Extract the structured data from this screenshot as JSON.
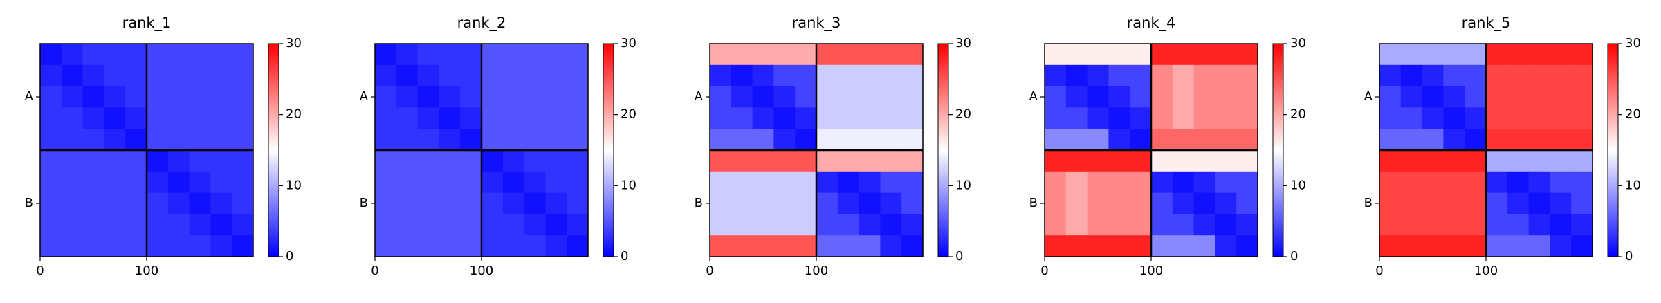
{
  "chart_data": [
    {
      "type": "heatmap",
      "title": "rank_1",
      "xlim": [
        0,
        200
      ],
      "ylim": [
        200,
        0
      ],
      "xticks": [
        0,
        100
      ],
      "yticks": [
        {
          "value": 50,
          "label": "A"
        },
        {
          "value": 150,
          "label": "B"
        }
      ],
      "chain_breaks": [
        100
      ],
      "zlim": [
        0,
        30
      ],
      "zticks": [
        0,
        10,
        20,
        30
      ],
      "colormap": [
        "#0000ff",
        "#ffffff",
        "#ff0000"
      ],
      "z": [
        [
          1,
          2,
          3,
          3,
          3,
          4,
          4,
          4,
          4,
          4
        ],
        [
          2,
          1,
          2,
          3,
          3,
          4,
          4,
          4,
          4,
          4
        ],
        [
          3,
          2,
          1,
          2,
          3,
          4,
          4,
          4,
          4,
          4
        ],
        [
          3,
          3,
          2,
          1,
          2,
          4,
          4,
          4,
          4,
          4
        ],
        [
          3,
          3,
          3,
          2,
          1,
          4,
          4,
          4,
          4,
          4
        ],
        [
          4,
          4,
          4,
          4,
          4,
          1,
          2,
          3,
          3,
          3
        ],
        [
          4,
          4,
          4,
          4,
          4,
          2,
          1,
          2,
          3,
          3
        ],
        [
          4,
          4,
          4,
          4,
          4,
          3,
          2,
          1,
          2,
          3
        ],
        [
          4,
          4,
          4,
          4,
          4,
          3,
          3,
          2,
          1,
          2
        ],
        [
          4,
          4,
          4,
          4,
          4,
          3,
          3,
          3,
          2,
          1
        ]
      ]
    },
    {
      "type": "heatmap",
      "title": "rank_2",
      "xlim": [
        0,
        200
      ],
      "ylim": [
        200,
        0
      ],
      "xticks": [
        0,
        100
      ],
      "yticks": [
        {
          "value": 50,
          "label": "A"
        },
        {
          "value": 150,
          "label": "B"
        }
      ],
      "chain_breaks": [
        100
      ],
      "zlim": [
        0,
        30
      ],
      "zticks": [
        0,
        10,
        20,
        30
      ],
      "colormap": [
        "#0000ff",
        "#ffffff",
        "#ff0000"
      ],
      "z": [
        [
          1,
          2,
          3,
          3,
          3,
          5,
          5,
          5,
          5,
          5
        ],
        [
          2,
          1,
          2,
          3,
          3,
          5,
          5,
          5,
          5,
          5
        ],
        [
          3,
          2,
          1,
          2,
          3,
          5,
          5,
          5,
          5,
          5
        ],
        [
          3,
          3,
          2,
          1,
          2,
          5,
          5,
          5,
          5,
          5
        ],
        [
          3,
          3,
          3,
          2,
          1,
          5,
          5,
          5,
          5,
          5
        ],
        [
          5,
          5,
          5,
          5,
          5,
          1,
          2,
          3,
          3,
          3
        ],
        [
          5,
          5,
          5,
          5,
          5,
          2,
          1,
          2,
          3,
          3
        ],
        [
          5,
          5,
          5,
          5,
          5,
          3,
          2,
          1,
          2,
          3
        ],
        [
          5,
          5,
          5,
          5,
          5,
          3,
          3,
          2,
          1,
          2
        ],
        [
          5,
          5,
          5,
          5,
          5,
          3,
          3,
          3,
          2,
          1
        ]
      ]
    },
    {
      "type": "heatmap",
      "title": "rank_3",
      "xlim": [
        0,
        200
      ],
      "ylim": [
        200,
        0
      ],
      "xticks": [
        0,
        100
      ],
      "yticks": [
        {
          "value": 50,
          "label": "A"
        },
        {
          "value": 150,
          "label": "B"
        }
      ],
      "chain_breaks": [
        100
      ],
      "zlim": [
        0,
        30
      ],
      "zticks": [
        0,
        10,
        20,
        30
      ],
      "colormap": [
        "#0000ff",
        "#ffffff",
        "#ff0000"
      ],
      "z": [
        [
          20,
          20,
          20,
          20,
          20,
          25,
          25,
          25,
          25,
          25
        ],
        [
          2,
          1,
          2,
          4,
          4,
          12,
          12,
          12,
          12,
          12
        ],
        [
          4,
          2,
          1,
          2,
          4,
          12,
          12,
          12,
          12,
          12
        ],
        [
          4,
          4,
          2,
          1,
          2,
          12,
          12,
          12,
          12,
          12
        ],
        [
          6,
          6,
          6,
          2,
          1,
          14,
          14,
          14,
          14,
          14
        ],
        [
          25,
          25,
          25,
          25,
          25,
          20,
          20,
          20,
          20,
          20
        ],
        [
          12,
          12,
          12,
          12,
          12,
          2,
          1,
          2,
          4,
          4
        ],
        [
          12,
          12,
          12,
          12,
          12,
          4,
          2,
          1,
          2,
          4
        ],
        [
          12,
          12,
          12,
          12,
          12,
          4,
          4,
          2,
          1,
          2
        ],
        [
          25,
          25,
          25,
          25,
          25,
          6,
          6,
          6,
          2,
          1
        ]
      ]
    },
    {
      "type": "heatmap",
      "title": "rank_4",
      "xlim": [
        0,
        200
      ],
      "ylim": [
        200,
        0
      ],
      "xticks": [
        0,
        100
      ],
      "yticks": [
        {
          "value": 50,
          "label": "A"
        },
        {
          "value": 150,
          "label": "B"
        }
      ],
      "chain_breaks": [
        100
      ],
      "zlim": [
        0,
        30
      ],
      "zticks": [
        0,
        10,
        20,
        30
      ],
      "colormap": [
        "#0000ff",
        "#ffffff",
        "#ff0000"
      ],
      "z": [
        [
          16,
          16,
          16,
          16,
          16,
          28,
          28,
          28,
          28,
          28
        ],
        [
          2,
          1,
          2,
          4,
          4,
          22,
          20,
          22,
          22,
          22
        ],
        [
          4,
          2,
          1,
          2,
          4,
          22,
          20,
          22,
          22,
          22
        ],
        [
          4,
          4,
          2,
          1,
          2,
          22,
          20,
          22,
          22,
          22
        ],
        [
          8,
          8,
          8,
          2,
          1,
          24,
          24,
          24,
          24,
          24
        ],
        [
          28,
          28,
          28,
          28,
          28,
          16,
          16,
          16,
          16,
          16
        ],
        [
          22,
          20,
          22,
          22,
          22,
          2,
          1,
          2,
          4,
          4
        ],
        [
          22,
          20,
          22,
          22,
          22,
          4,
          2,
          1,
          2,
          4
        ],
        [
          22,
          20,
          22,
          22,
          22,
          4,
          4,
          2,
          1,
          2
        ],
        [
          28,
          28,
          28,
          28,
          28,
          8,
          8,
          8,
          2,
          1
        ]
      ]
    },
    {
      "type": "heatmap",
      "title": "rank_5",
      "xlim": [
        0,
        200
      ],
      "ylim": [
        200,
        0
      ],
      "xticks": [
        0,
        100
      ],
      "yticks": [
        {
          "value": 50,
          "label": "A"
        },
        {
          "value": 150,
          "label": "B"
        }
      ],
      "chain_breaks": [
        100
      ],
      "zlim": [
        0,
        30
      ],
      "zticks": [
        0,
        10,
        20,
        30
      ],
      "colormap": [
        "#0000ff",
        "#ffffff",
        "#ff0000"
      ],
      "z": [
        [
          10,
          10,
          10,
          10,
          10,
          28,
          28,
          28,
          28,
          28
        ],
        [
          2,
          1,
          2,
          4,
          4,
          26,
          26,
          26,
          26,
          26
        ],
        [
          4,
          2,
          1,
          2,
          4,
          26,
          26,
          26,
          26,
          26
        ],
        [
          4,
          4,
          2,
          1,
          2,
          26,
          26,
          26,
          26,
          26
        ],
        [
          6,
          6,
          6,
          2,
          1,
          27,
          27,
          27,
          27,
          27
        ],
        [
          28,
          28,
          28,
          28,
          28,
          10,
          10,
          10,
          10,
          10
        ],
        [
          26,
          26,
          26,
          26,
          26,
          2,
          1,
          2,
          4,
          4
        ],
        [
          26,
          26,
          26,
          26,
          26,
          4,
          2,
          1,
          2,
          4
        ],
        [
          26,
          26,
          26,
          26,
          26,
          4,
          4,
          2,
          1,
          2
        ],
        [
          28,
          28,
          28,
          28,
          28,
          6,
          6,
          6,
          2,
          1
        ]
      ]
    }
  ]
}
